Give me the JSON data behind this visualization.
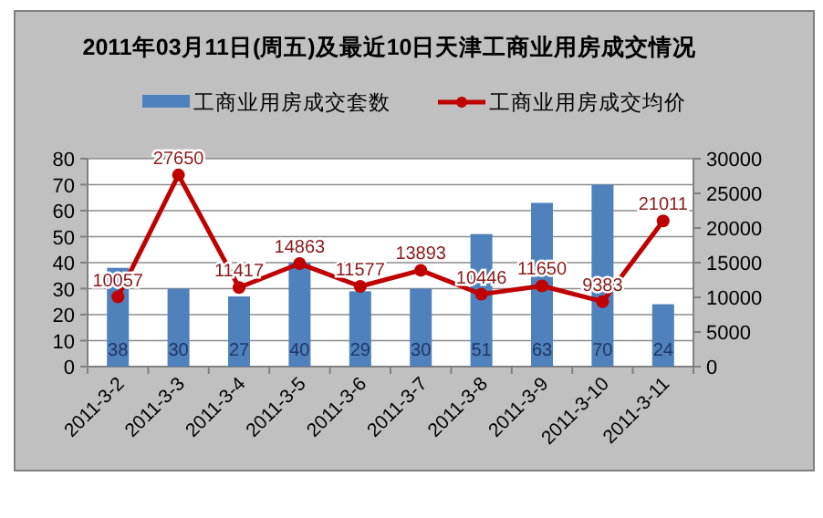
{
  "chart_data": {
    "type": "bar",
    "title": "2011年03月11日(周五)及最近10日天津工商业用房成交情况",
    "categories": [
      "2011-3-2",
      "2011-3-3",
      "2011-3-4",
      "2011-3-5",
      "2011-3-6",
      "2011-3-7",
      "2011-3-8",
      "2011-3-9",
      "2011-3-10",
      "2011-3-11"
    ],
    "series": [
      {
        "name": "工商业用房成交套数",
        "color": "#4f81bd",
        "values": [
          38,
          30,
          27,
          40,
          29,
          30,
          51,
          63,
          70,
          24
        ]
      },
      {
        "name": "工商业用房成交均价",
        "type": "line",
        "axis": "y2",
        "color": "#c00000",
        "marker": "circle",
        "values": [
          10057,
          27650,
          11417,
          14863,
          11577,
          13893,
          10446,
          11650,
          9383,
          21011
        ]
      }
    ],
    "ylim": [
      0,
      80
    ],
    "yticks": [
      0,
      10,
      20,
      30,
      40,
      50,
      60,
      70,
      80
    ],
    "y2lim": [
      0,
      30000
    ],
    "y2ticks": [
      0,
      5000,
      10000,
      15000,
      20000,
      25000,
      30000
    ],
    "grid": "y",
    "legend": "top",
    "data_labels": true
  }
}
